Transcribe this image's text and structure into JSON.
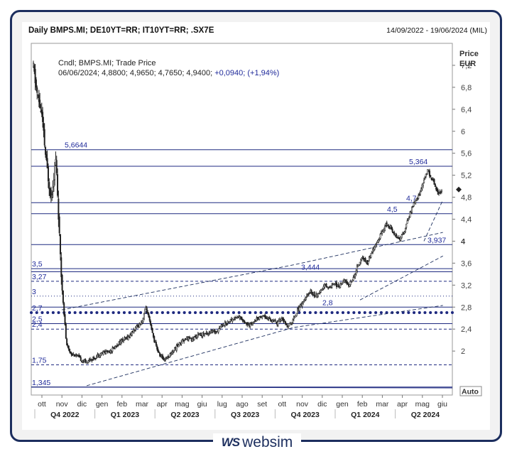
{
  "header": {
    "title": "Daily BMPS.MI; DE10YT=RR; IT10YT=RR; .SX7E",
    "range": "14/09/2022 - 19/06/2024 (MIL)"
  },
  "legend": {
    "line1": "Cndl; BMPS.MI; Trade Price",
    "line2_prefix": "06/06/2024; 4,8800; 4,9650; 4,7650; 4,9400; ",
    "line2_change": "+0,0940; (+1,94%)"
  },
  "axis": {
    "price_label": "Price",
    "currency_label": "EUR",
    "auto_label": "Auto"
  },
  "logo": {
    "mark": "WS",
    "text": "websim"
  },
  "colors": {
    "frame": "#1c2e5e",
    "level_line": "#1f2a80",
    "candle": "#222222",
    "accent_text": "#1f2a9a"
  },
  "chart_data": {
    "type": "candlestick",
    "ylim": [
      1.2,
      7.6
    ],
    "yticks": [
      7.2,
      6.8,
      6.4,
      6,
      5.6,
      5.2,
      4.8,
      4.4,
      4,
      3.6,
      3.2,
      2.8,
      2.4,
      2
    ],
    "ytick_labels": [
      "7,2",
      "6,8",
      "6,4",
      "6",
      "5,6",
      "5,2",
      "4,8",
      "4,4",
      "4",
      "3,6",
      "3,2",
      "2,8",
      "2,4",
      "2"
    ],
    "x_months": [
      "ott",
      "nov",
      "dic",
      "gen",
      "feb",
      "mar",
      "apr",
      "mag",
      "giu",
      "lug",
      "ago",
      "set",
      "ott",
      "nov",
      "dic",
      "gen",
      "feb",
      "mar",
      "apr",
      "mag",
      "giu"
    ],
    "x_quarters": [
      "Q4 2022",
      "Q1 2023",
      "Q2 2023",
      "Q3 2023",
      "Q4 2023",
      "Q1 2024",
      "Q2 2024"
    ],
    "last_value": 4.94,
    "horizontal_levels": [
      {
        "value": 5.6644,
        "label": "5,6644",
        "style": "solid"
      },
      {
        "value": 5.364,
        "label": "5,364",
        "style": "solid"
      },
      {
        "value": 4.7,
        "label": "4,7",
        "style": "solid"
      },
      {
        "value": 4.5,
        "label": "4,5",
        "style": "solid"
      },
      {
        "value": 3.937,
        "label": "3,937",
        "style": "solid"
      },
      {
        "value": 3.5,
        "label": "3,5",
        "style": "solid"
      },
      {
        "value": 3.444,
        "label": "3,444",
        "style": "solid"
      },
      {
        "value": 3.27,
        "label": "3,27",
        "style": "dashed"
      },
      {
        "value": 3.0,
        "label": "3",
        "style": "dotted"
      },
      {
        "value": 2.8,
        "label": "2,8",
        "style": "solid"
      },
      {
        "value": 2.7,
        "label": "2,7",
        "style": "heavy-dotted"
      },
      {
        "value": 2.5,
        "label": "2,5",
        "style": "solid"
      },
      {
        "value": 2.4,
        "label": "2,4",
        "style": "dashed"
      },
      {
        "value": 1.75,
        "label": "1,75",
        "style": "dashed"
      },
      {
        "value": 1.345,
        "label": "1,345",
        "style": "solid"
      }
    ],
    "series": [
      {
        "name": "BMPS.MI",
        "close_path": [
          [
            0,
            7.15
          ],
          [
            0.3,
            6.7
          ],
          [
            0.7,
            6.3
          ],
          [
            1.1,
            5.4
          ],
          [
            1.5,
            4.8
          ],
          [
            1.9,
            5.5
          ],
          [
            2.1,
            4.6
          ],
          [
            2.3,
            3.55
          ],
          [
            2.5,
            2.95
          ],
          [
            2.8,
            2.1
          ],
          [
            3.2,
            1.95
          ],
          [
            3.6,
            1.92
          ],
          [
            4.0,
            1.85
          ],
          [
            4.4,
            1.8
          ],
          [
            4.8,
            1.85
          ],
          [
            5.2,
            1.88
          ],
          [
            5.6,
            1.95
          ],
          [
            6.0,
            1.98
          ],
          [
            6.4,
            2.0
          ],
          [
            6.8,
            2.05
          ],
          [
            7.2,
            2.15
          ],
          [
            7.6,
            2.2
          ],
          [
            8.0,
            2.25
          ],
          [
            8.4,
            2.35
          ],
          [
            8.8,
            2.45
          ],
          [
            9.2,
            2.55
          ],
          [
            9.5,
            2.8
          ],
          [
            9.8,
            2.55
          ],
          [
            10.2,
            2.2
          ],
          [
            10.6,
            1.95
          ],
          [
            11.0,
            1.85
          ],
          [
            11.4,
            1.9
          ],
          [
            11.8,
            2.0
          ],
          [
            12.2,
            2.1
          ],
          [
            12.6,
            2.2
          ],
          [
            13.0,
            2.25
          ],
          [
            13.4,
            2.2
          ],
          [
            13.8,
            2.28
          ],
          [
            14.2,
            2.3
          ],
          [
            14.6,
            2.32
          ],
          [
            15.0,
            2.35
          ],
          [
            15.4,
            2.35
          ],
          [
            15.8,
            2.45
          ],
          [
            16.2,
            2.5
          ],
          [
            16.6,
            2.55
          ],
          [
            17.0,
            2.6
          ],
          [
            17.4,
            2.62
          ],
          [
            17.8,
            2.55
          ],
          [
            18.2,
            2.45
          ],
          [
            18.6,
            2.55
          ],
          [
            19.0,
            2.6
          ],
          [
            19.4,
            2.65
          ],
          [
            19.8,
            2.6
          ],
          [
            20.2,
            2.55
          ],
          [
            20.6,
            2.5
          ],
          [
            21.0,
            2.6
          ],
          [
            21.4,
            2.45
          ],
          [
            21.8,
            2.5
          ],
          [
            22.2,
            2.7
          ],
          [
            22.6,
            2.85
          ],
          [
            23.0,
            2.95
          ],
          [
            23.4,
            3.1
          ],
          [
            23.8,
            3.0
          ],
          [
            24.2,
            3.05
          ],
          [
            24.6,
            3.2
          ],
          [
            25.0,
            3.15
          ],
          [
            25.4,
            3.25
          ],
          [
            25.8,
            3.15
          ],
          [
            26.2,
            3.3
          ],
          [
            26.6,
            3.2
          ],
          [
            27.0,
            3.3
          ],
          [
            27.4,
            3.55
          ],
          [
            27.8,
            3.7
          ],
          [
            28.2,
            3.6
          ],
          [
            28.6,
            3.8
          ],
          [
            29.0,
            3.95
          ],
          [
            29.4,
            4.15
          ],
          [
            29.8,
            4.3
          ],
          [
            30.2,
            4.25
          ],
          [
            30.6,
            4.1
          ],
          [
            31.0,
            4.05
          ],
          [
            31.4,
            4.2
          ],
          [
            31.8,
            4.5
          ],
          [
            32.2,
            4.7
          ],
          [
            32.6,
            4.85
          ],
          [
            33.0,
            5.1
          ],
          [
            33.3,
            5.3
          ],
          [
            33.6,
            5.15
          ],
          [
            33.9,
            5.05
          ],
          [
            34.2,
            4.85
          ],
          [
            34.5,
            4.94
          ]
        ]
      }
    ]
  }
}
